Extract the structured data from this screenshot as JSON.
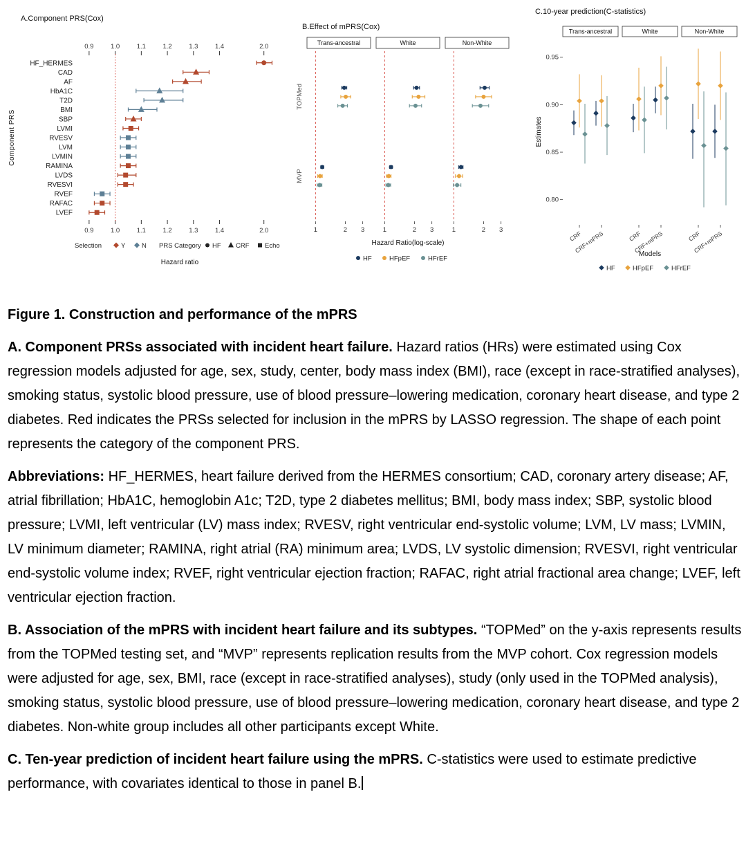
{
  "chart_data": [
    {
      "type": "scatter",
      "panel": "A",
      "title": "A.Component PRS(Cox)",
      "xlabel": "Hazard ratio",
      "ylabel": "Component PRS",
      "x_ticks": [
        0.9,
        1.0,
        1.1,
        1.2,
        1.3,
        1.4,
        2.0
      ],
      "ref_line": 1.0,
      "legend": {
        "selection_title": "Selection",
        "selection": [
          {
            "label": "Y",
            "color": "#b2492e"
          },
          {
            "label": "N",
            "color": "#5d7f95"
          }
        ],
        "category_title": "PRS Category",
        "categories": [
          {
            "label": "HF",
            "shape": "circle"
          },
          {
            "label": "CRF",
            "shape": "triangle"
          },
          {
            "label": "Echo",
            "shape": "square"
          }
        ]
      },
      "rows": [
        {
          "name": "HF_HERMES",
          "hr": 2.0,
          "lo": 1.9,
          "hi": 2.11,
          "selection": "Y",
          "category": "HF"
        },
        {
          "name": "CAD",
          "hr": 1.31,
          "lo": 1.26,
          "hi": 1.36,
          "selection": "Y",
          "category": "CRF"
        },
        {
          "name": "AF",
          "hr": 1.27,
          "lo": 1.22,
          "hi": 1.33,
          "selection": "Y",
          "category": "CRF"
        },
        {
          "name": "HbA1C",
          "hr": 1.17,
          "lo": 1.08,
          "hi": 1.26,
          "selection": "N",
          "category": "CRF"
        },
        {
          "name": "T2D",
          "hr": 1.18,
          "lo": 1.11,
          "hi": 1.26,
          "selection": "N",
          "category": "CRF"
        },
        {
          "name": "BMI",
          "hr": 1.1,
          "lo": 1.05,
          "hi": 1.16,
          "selection": "N",
          "category": "CRF"
        },
        {
          "name": "SBP",
          "hr": 1.07,
          "lo": 1.04,
          "hi": 1.1,
          "selection": "Y",
          "category": "CRF"
        },
        {
          "name": "LVMI",
          "hr": 1.06,
          "lo": 1.03,
          "hi": 1.09,
          "selection": "Y",
          "category": "Echo"
        },
        {
          "name": "RVESV",
          "hr": 1.05,
          "lo": 1.02,
          "hi": 1.08,
          "selection": "N",
          "category": "Echo"
        },
        {
          "name": "LVM",
          "hr": 1.05,
          "lo": 1.02,
          "hi": 1.08,
          "selection": "N",
          "category": "Echo"
        },
        {
          "name": "LVMIN",
          "hr": 1.05,
          "lo": 1.02,
          "hi": 1.08,
          "selection": "N",
          "category": "Echo"
        },
        {
          "name": "RAMINA",
          "hr": 1.05,
          "lo": 1.02,
          "hi": 1.08,
          "selection": "Y",
          "category": "Echo"
        },
        {
          "name": "LVDS",
          "hr": 1.04,
          "lo": 1.01,
          "hi": 1.08,
          "selection": "Y",
          "category": "Echo"
        },
        {
          "name": "RVESVI",
          "hr": 1.04,
          "lo": 1.01,
          "hi": 1.07,
          "selection": "Y",
          "category": "Echo"
        },
        {
          "name": "RVEF",
          "hr": 0.95,
          "lo": 0.92,
          "hi": 0.98,
          "selection": "N",
          "category": "Echo"
        },
        {
          "name": "RAFAC",
          "hr": 0.95,
          "lo": 0.92,
          "hi": 0.98,
          "selection": "Y",
          "category": "Echo"
        },
        {
          "name": "LVEF",
          "hr": 0.93,
          "lo": 0.9,
          "hi": 0.96,
          "selection": "Y",
          "category": "Echo"
        }
      ]
    },
    {
      "type": "scatter",
      "panel": "B",
      "title": "B.Effect of mPRS(Cox)",
      "xlabel": "Hazard Ratio(log-scale)",
      "x_ticks": [
        1,
        2,
        3
      ],
      "x_scale": "log",
      "ref_line": 1,
      "row_labels": [
        "TOPMed",
        "MVP"
      ],
      "series": [
        {
          "name": "HF",
          "color": "#1b3a5f"
        },
        {
          "name": "HFpEF",
          "color": "#e8a33d"
        },
        {
          "name": "HFrEF",
          "color": "#6a9193"
        }
      ],
      "facets": [
        {
          "label": "Trans-ancestral",
          "rows": [
            {
              "label": "TOPMed",
              "values": [
                {
                  "series": "HF",
                  "hr": 1.95,
                  "lo": 1.84,
                  "hi": 2.07
                },
                {
                  "series": "HFpEF",
                  "hr": 2.02,
                  "lo": 1.8,
                  "hi": 2.27
                },
                {
                  "series": "HFrEF",
                  "hr": 1.88,
                  "lo": 1.68,
                  "hi": 2.1
                }
              ]
            },
            {
              "label": "MVP",
              "values": [
                {
                  "series": "HF",
                  "hr": 1.17,
                  "lo": 1.13,
                  "hi": 1.21
                },
                {
                  "series": "HFpEF",
                  "hr": 1.11,
                  "lo": 1.05,
                  "hi": 1.17
                },
                {
                  "series": "HFrEF",
                  "hr": 1.1,
                  "lo": 1.04,
                  "hi": 1.16
                }
              ]
            }
          ]
        },
        {
          "label": "White",
          "rows": [
            {
              "label": "TOPMed",
              "values": [
                {
                  "series": "HF",
                  "hr": 2.1,
                  "lo": 1.96,
                  "hi": 2.25
                },
                {
                  "series": "HFpEF",
                  "hr": 2.2,
                  "lo": 1.9,
                  "hi": 2.55
                },
                {
                  "series": "HFrEF",
                  "hr": 2.05,
                  "lo": 1.78,
                  "hi": 2.36
                }
              ]
            },
            {
              "label": "MVP",
              "values": [
                {
                  "series": "HF",
                  "hr": 1.16,
                  "lo": 1.12,
                  "hi": 1.2
                },
                {
                  "series": "HFpEF",
                  "hr": 1.1,
                  "lo": 1.04,
                  "hi": 1.16
                },
                {
                  "series": "HFrEF",
                  "hr": 1.09,
                  "lo": 1.03,
                  "hi": 1.15
                }
              ]
            }
          ]
        },
        {
          "label": "Non-White",
          "rows": [
            {
              "label": "TOPMed",
              "values": [
                {
                  "series": "HF",
                  "hr": 2.05,
                  "lo": 1.84,
                  "hi": 2.28
                },
                {
                  "series": "HFpEF",
                  "hr": 2.0,
                  "lo": 1.66,
                  "hi": 2.41
                },
                {
                  "series": "HFrEF",
                  "hr": 1.86,
                  "lo": 1.54,
                  "hi": 2.25
                }
              ]
            },
            {
              "label": "MVP",
              "values": [
                {
                  "series": "HF",
                  "hr": 1.18,
                  "lo": 1.12,
                  "hi": 1.24
                },
                {
                  "series": "HFpEF",
                  "hr": 1.13,
                  "lo": 1.04,
                  "hi": 1.23
                },
                {
                  "series": "HFrEF",
                  "hr": 1.08,
                  "lo": 0.99,
                  "hi": 1.18
                }
              ]
            }
          ]
        }
      ]
    },
    {
      "type": "scatter",
      "panel": "C",
      "title": "C.10-year prediction(C-statistics)",
      "xlabel": "Models",
      "ylabel": "Estimates",
      "y_ticks": [
        0.8,
        0.85,
        0.9,
        0.95
      ],
      "ylim": [
        0.775,
        0.968
      ],
      "x_categories": [
        "CRF",
        "CRF+mPRS"
      ],
      "series": [
        {
          "name": "HF",
          "color": "#1b3a5f"
        },
        {
          "name": "HFpEF",
          "color": "#e8a33d"
        },
        {
          "name": "HFrEF",
          "color": "#6a9193"
        }
      ],
      "facets": [
        {
          "label": "Trans-ancestral",
          "groups": [
            {
              "model": "CRF",
              "values": [
                {
                  "series": "HF",
                  "est": 0.881,
                  "lo": 0.868,
                  "hi": 0.894
                },
                {
                  "series": "HFpEF",
                  "est": 0.904,
                  "lo": 0.876,
                  "hi": 0.932
                },
                {
                  "series": "HFrEF",
                  "est": 0.869,
                  "lo": 0.838,
                  "hi": 0.901
                }
              ]
            },
            {
              "model": "CRF+mPRS",
              "values": [
                {
                  "series": "HF",
                  "est": 0.891,
                  "lo": 0.878,
                  "hi": 0.904
                },
                {
                  "series": "HFpEF",
                  "est": 0.904,
                  "lo": 0.877,
                  "hi": 0.931
                },
                {
                  "series": "HFrEF",
                  "est": 0.878,
                  "lo": 0.847,
                  "hi": 0.909
                }
              ]
            }
          ]
        },
        {
          "label": "White",
          "groups": [
            {
              "model": "CRF",
              "values": [
                {
                  "series": "HF",
                  "est": 0.886,
                  "lo": 0.871,
                  "hi": 0.901
                },
                {
                  "series": "HFpEF",
                  "est": 0.906,
                  "lo": 0.873,
                  "hi": 0.939
                },
                {
                  "series": "HFrEF",
                  "est": 0.884,
                  "lo": 0.849,
                  "hi": 0.919
                }
              ]
            },
            {
              "model": "CRF+mPRS",
              "values": [
                {
                  "series": "HF",
                  "est": 0.905,
                  "lo": 0.891,
                  "hi": 0.919
                },
                {
                  "series": "HFpEF",
                  "est": 0.92,
                  "lo": 0.889,
                  "hi": 0.951
                },
                {
                  "series": "HFrEF",
                  "est": 0.907,
                  "lo": 0.874,
                  "hi": 0.94
                }
              ]
            }
          ]
        },
        {
          "label": "Non-White",
          "groups": [
            {
              "model": "CRF",
              "values": [
                {
                  "series": "HF",
                  "est": 0.872,
                  "lo": 0.843,
                  "hi": 0.901
                },
                {
                  "series": "HFpEF",
                  "est": 0.922,
                  "lo": 0.885,
                  "hi": 0.959
                },
                {
                  "series": "HFrEF",
                  "est": 0.857,
                  "lo": 0.792,
                  "hi": 0.914
                }
              ]
            },
            {
              "model": "CRF+mPRS",
              "values": [
                {
                  "series": "HF",
                  "est": 0.872,
                  "lo": 0.844,
                  "hi": 0.9
                },
                {
                  "series": "HFpEF",
                  "est": 0.92,
                  "lo": 0.884,
                  "hi": 0.956
                },
                {
                  "series": "HFrEF",
                  "est": 0.854,
                  "lo": 0.794,
                  "hi": 0.913
                }
              ]
            }
          ]
        }
      ]
    }
  ],
  "colors": {
    "selected_red": "#b2492e",
    "not_selected_blue": "#5d7f95",
    "hf_navy": "#1b3a5f",
    "hfpef_gold": "#e8a33d",
    "hfref_teal": "#6a9193",
    "reference_line_red": "#d6453b"
  },
  "caption": {
    "title": "Figure 1. Construction and performance of the mPRS",
    "para_a": {
      "lead": "A. Component PRSs associated with incident heart failure.",
      "text": "Hazard ratios (HRs) were estimated using Cox regression models adjusted for age, sex, study, center, body mass index (BMI), race (except in race-stratified analyses), smoking status, systolic blood pressure, use of blood pressure–lowering medication, coronary heart disease, and type 2 diabetes. Red indicates the PRSs selected for inclusion in the mPRS by LASSO regression. The shape of each point represents the category of the component PRS."
    },
    "abbreviations": {
      "lead": "Abbreviations:",
      "text": "HF_HERMES, heart failure derived from the HERMES consortium; CAD, coronary artery disease; AF, atrial fibrillation; HbA1C, hemoglobin A1c; T2D, type 2 diabetes mellitus; BMI, body mass index; SBP, systolic blood pressure; LVMI, left ventricular (LV) mass index; RVESV, right ventricular end-systolic volume; LVM, LV mass; LVMIN, LV minimum diameter; RAMINA, right atrial (RA) minimum area; LVDS, LV systolic dimension; RVESVI, right ventricular end-systolic volume index; RVEF, right ventricular ejection fraction; RAFAC, right atrial fractional area change; LVEF, left ventricular ejection fraction."
    },
    "para_b": {
      "lead": "B. Association of the mPRS with incident heart failure and its subtypes.",
      "text": "“TOPMed” on the y-axis represents results from the TOPMed testing set, and “MVP” represents replication results from the MVP cohort. Cox regression models were adjusted for age, sex, BMI, race (except in race-stratified analyses), study (only used in the TOPMed analysis), smoking status, systolic blood pressure, use of blood pressure–lowering medication, coronary heart disease, and type 2 diabetes. Non-white group includes all other participants except White."
    },
    "para_c": {
      "lead": "C. Ten-year prediction of incident heart failure using the mPRS.",
      "text": "C-statistics were used to estimate predictive performance, with covariates identical to those in panel B."
    }
  }
}
